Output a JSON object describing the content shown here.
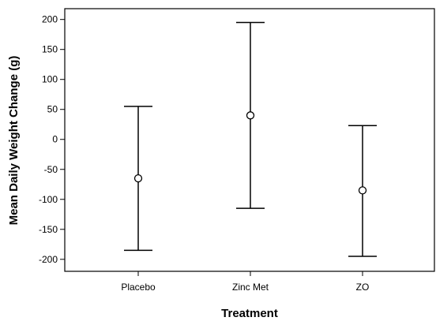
{
  "chart_data": {
    "type": "scatter",
    "title": "",
    "xlabel": "Treatment",
    "ylabel": "Mean Daily Weight Change (g)",
    "categories": [
      "Placebo",
      "Zinc Met",
      "ZO"
    ],
    "series": [
      {
        "mean": [
          -65,
          40,
          -85
        ],
        "lower": [
          -185,
          -115,
          -195
        ],
        "upper": [
          55,
          195,
          23
        ]
      }
    ],
    "ylim": [
      -220,
      218
    ],
    "yticks": [
      -200,
      -150,
      -100,
      -50,
      0,
      50,
      100,
      150,
      200
    ],
    "grid": false,
    "legend": "none"
  }
}
